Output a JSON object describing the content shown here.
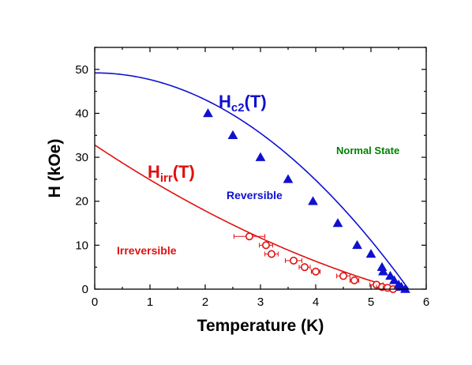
{
  "chart_data": {
    "type": "scatter",
    "xlabel": "Temperature (K)",
    "ylabel": "H (kOe)",
    "xlim": [
      0,
      6
    ],
    "ylim": [
      0,
      55
    ],
    "xticks": [
      0,
      1,
      2,
      3,
      4,
      5,
      6
    ],
    "yticks": [
      0,
      10,
      20,
      30,
      40,
      50
    ],
    "grid": false,
    "colors": {
      "hc2": "#1010d0",
      "hirr": "#e01010",
      "normal": "#008000",
      "axis": "#000000"
    },
    "series": [
      {
        "name": "Hc2(T)",
        "marker": "filled-triangle",
        "x": [
          2.05,
          2.5,
          3.0,
          3.5,
          3.95,
          4.4,
          4.75,
          5.0,
          5.2,
          5.22,
          5.35,
          5.42,
          5.5,
          5.55,
          5.62
        ],
        "y": [
          40,
          35,
          30,
          25,
          20,
          15,
          10,
          8,
          5,
          4,
          3,
          2,
          1,
          0.5,
          0
        ],
        "fit": {
          "hc0": 49.2,
          "tc": 5.68
        }
      },
      {
        "name": "Hirr(T)",
        "marker": "open-circle",
        "x": [
          2.8,
          3.1,
          3.2,
          3.6,
          3.8,
          4.0,
          4.5,
          4.7,
          5.1,
          5.2,
          5.3,
          5.4
        ],
        "y": [
          12,
          10,
          8,
          6.5,
          5,
          4,
          3,
          2,
          1,
          0.5,
          0.3,
          0
        ],
        "xerr": [
          0.28,
          0.12,
          0.12,
          0.15,
          0.1,
          0.08,
          0.12,
          0.08,
          0.12,
          0.1,
          0.08,
          0.05
        ],
        "fit": {
          "h0": 32.8,
          "a": 0.4,
          "tc": 5.5
        }
      }
    ],
    "annotations": {
      "hc2_main": "H",
      "hc2_sub": "c2",
      "hc2_tail": "(T)",
      "hirr_main": "H",
      "hirr_sub": "irr",
      "hirr_tail": "(T)",
      "normal": "Normal State",
      "reversible": "Reversible",
      "irreversible": "Irreversible"
    }
  }
}
